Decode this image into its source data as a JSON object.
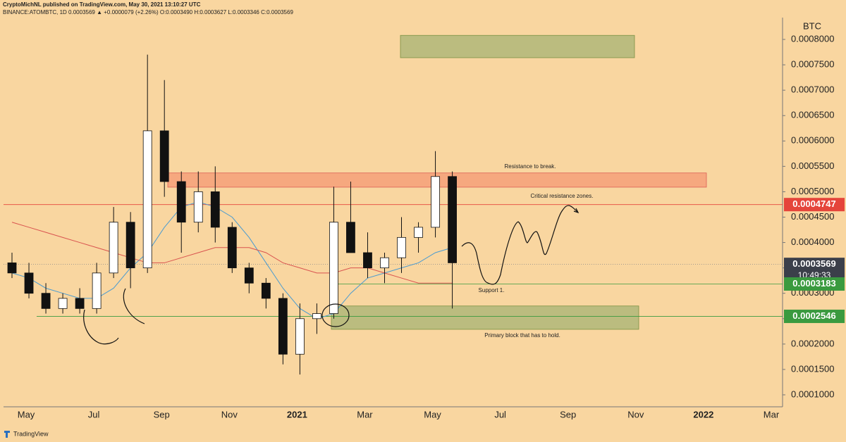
{
  "header": {
    "author_line": "CryptoMichNL published on TradingView.com, May 30, 2021 13:10:27 UTC",
    "quote_line": "BINANCE:ATOMBTC, 1D  0.0003569 ▲ +0.0000079 (+2.26%)  O:0.0003490  H:0.0003627  L:0.0003346  C:0.0003569"
  },
  "chart_data": {
    "type": "candlestick",
    "y_axis_label": "BTC",
    "categories": [
      null,
      "May",
      null,
      null,
      null,
      "Jul",
      null,
      null,
      null,
      "Sep",
      null,
      null,
      null,
      "Nov",
      null,
      null,
      null,
      "2021",
      null,
      null,
      null,
      "Mar",
      null,
      null,
      null,
      "May",
      null,
      null,
      null,
      "Jul",
      null,
      null,
      null,
      "Sep",
      null,
      null,
      null,
      "Nov",
      null,
      null,
      null,
      "2022",
      null,
      null,
      null,
      "Mar"
    ],
    "open": [
      0.00036,
      0.00034,
      0.0003,
      0.00027,
      0.00029,
      0.00027,
      0.00034,
      0.00044,
      0.00035,
      0.00062,
      0.00052,
      0.00044,
      0.0005,
      0.00043,
      0.00035,
      0.00032,
      0.00029,
      0.00018,
      0.00025,
      0.00026,
      0.00044,
      0.00038,
      0.00035,
      0.00037,
      0.00041,
      0.00043,
      0.00053,
      null,
      null,
      null,
      null,
      null,
      null,
      null,
      null,
      null,
      null,
      null,
      null,
      null,
      null,
      null,
      null,
      null,
      null,
      null
    ],
    "high": [
      0.00038,
      0.00036,
      0.00032,
      0.0003,
      0.00031,
      0.00036,
      0.00047,
      0.00046,
      0.00077,
      0.00072,
      0.00054,
      0.00054,
      0.00055,
      0.00044,
      0.00036,
      0.00033,
      0.0003,
      0.00028,
      0.00028,
      0.00051,
      0.00052,
      0.00042,
      0.00038,
      0.00045,
      0.00044,
      0.00058,
      0.00054,
      null,
      null,
      null,
      null,
      null,
      null,
      null,
      null,
      null,
      null,
      null,
      null,
      null,
      null,
      null,
      null,
      null,
      null,
      null
    ],
    "low": [
      0.00033,
      0.00029,
      0.00026,
      0.00026,
      0.00026,
      0.00026,
      0.00033,
      0.00031,
      0.00034,
      0.00049,
      0.00038,
      0.00042,
      0.0004,
      0.00034,
      0.0003,
      0.00027,
      0.00016,
      0.00014,
      0.00022,
      0.00025,
      0.00038,
      0.00033,
      0.00032,
      0.00034,
      0.00038,
      0.00041,
      0.00027,
      null,
      null,
      null,
      null,
      null,
      null,
      null,
      null,
      null,
      null,
      null,
      null,
      null,
      null,
      null,
      null,
      null,
      null,
      null
    ],
    "close": [
      0.00034,
      0.0003,
      0.00027,
      0.00029,
      0.00027,
      0.00034,
      0.00044,
      0.00035,
      0.00062,
      0.00052,
      0.00044,
      0.0005,
      0.00043,
      0.00035,
      0.00032,
      0.00029,
      0.00018,
      0.00025,
      0.00026,
      0.00044,
      0.00038,
      0.00035,
      0.00037,
      0.00041,
      0.00043,
      0.00053,
      0.00036,
      null,
      null,
      null,
      null,
      null,
      null,
      null,
      null,
      null,
      null,
      null,
      null,
      null,
      null,
      null,
      null,
      null,
      null,
      null
    ],
    "series": [
      {
        "color": "#4a9bd1",
        "values": [
          0.00034,
          0.00033,
          0.00031,
          0.0003,
          0.00029,
          0.00029,
          0.00031,
          0.00035,
          0.00038,
          0.00043,
          0.00047,
          0.00048,
          0.00047,
          0.00045,
          0.00041,
          0.00036,
          0.00031,
          0.00027,
          0.00025,
          0.00026,
          0.0003,
          0.00033,
          0.00034,
          0.00035,
          0.00036,
          0.00038,
          0.00039,
          null,
          null,
          null,
          null,
          null,
          null,
          null,
          null,
          null,
          null,
          null,
          null,
          null,
          null,
          null,
          null,
          null,
          null,
          null
        ]
      },
      {
        "color": "#d9534f",
        "values": [
          0.00044,
          0.00043,
          0.00042,
          0.00041,
          0.0004,
          0.00039,
          0.00038,
          0.00037,
          0.00036,
          0.00036,
          0.00037,
          0.00038,
          0.00039,
          0.00039,
          0.00039,
          0.00038,
          0.00036,
          0.00035,
          0.00034,
          0.00034,
          0.00035,
          0.00035,
          0.00034,
          0.00033,
          0.00032,
          0.00032,
          0.00032,
          null,
          null,
          null,
          null,
          null,
          null,
          null,
          null,
          null,
          null,
          null,
          null,
          null,
          null,
          null,
          null,
          null,
          null,
          null
        ]
      }
    ],
    "ylim": [
      7.64e-05,
      0.000843
    ],
    "yticks": [
      {
        "value": 0.0001,
        "label": "0.0001000"
      },
      {
        "value": 0.00015,
        "label": "0.0001500"
      },
      {
        "value": 0.0002,
        "label": "0.0002000"
      },
      {
        "value": 0.00025,
        "label": "0.0002500"
      },
      {
        "value": 0.0003,
        "label": "0.0003000"
      },
      {
        "value": 0.00035,
        "label": "0.0003500"
      },
      {
        "value": 0.0004,
        "label": "0.0004000"
      },
      {
        "value": 0.00045,
        "label": "0.0004500"
      },
      {
        "value": 0.0005,
        "label": "0.0005000"
      },
      {
        "value": 0.00055,
        "label": "0.0005500"
      },
      {
        "value": 0.0006,
        "label": "0.0006000"
      },
      {
        "value": 0.00065,
        "label": "0.0006500"
      },
      {
        "value": 0.0007,
        "label": "0.0007000"
      },
      {
        "value": 0.00075,
        "label": "0.0007500"
      },
      {
        "value": 0.0008,
        "label": "0.0008000"
      }
    ],
    "zones": [
      {
        "low": 0.000764,
        "high": 0.000808,
        "color": "#b5ba7c"
      },
      {
        "low": 0.000509,
        "high": 0.000537,
        "color": "#f6a47c"
      },
      {
        "low": 0.000229,
        "high": 0.000275,
        "color": "#b5ba7c"
      }
    ],
    "levels": [
      {
        "value": 0.0004747,
        "color": "#e5453b"
      },
      {
        "value": 0.0003569,
        "color": "#3b3f4a",
        "countdown": "10:49:33"
      },
      {
        "value": 0.0003183,
        "color": "#3a9a3f"
      },
      {
        "value": 0.0002546,
        "color": "#3a9a3f"
      }
    ],
    "annotations": [
      "Resistance to break.",
      "Critical resistance zones.",
      "Support 1.",
      "Primary block that has to hold."
    ]
  },
  "footer": {
    "brand": "TradingView"
  }
}
